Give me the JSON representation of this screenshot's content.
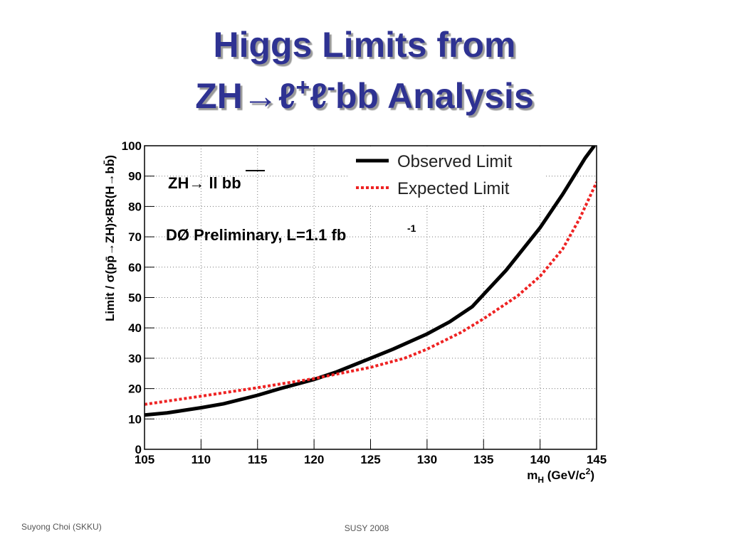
{
  "slide": {
    "title_line1": "Higgs Limits from",
    "title_line2": [
      "ZH→ℓ",
      "+",
      "ℓ",
      "-",
      "bb  Analysis"
    ],
    "footer_left": "Suyong Choi (SKKU)",
    "footer_center": "SUSY 2008"
  },
  "chart_data": {
    "type": "line",
    "y_label": "Limit / σ(pp̄→ZH)×BR(H→bb̄)",
    "x_label": [
      "m",
      "H",
      " (GeV/c",
      "2",
      ")"
    ],
    "annotations": [
      "ZH→ ll bb",
      "DØ Preliminary, L=1.1 fb",
      "-1"
    ],
    "xlim": [
      105,
      145
    ],
    "xticks": [
      105,
      110,
      115,
      120,
      125,
      130,
      135,
      140,
      145
    ],
    "ylim": [
      0,
      100
    ],
    "yticks": [
      0,
      10,
      20,
      30,
      40,
      50,
      60,
      70,
      80,
      90,
      100
    ],
    "grid": true,
    "legend": "upper right",
    "series": [
      {
        "name": "Observed Limit",
        "color": "#000000",
        "style": "solid",
        "x": [
          105,
          107,
          110,
          112,
          115,
          117,
          120,
          122,
          125,
          127,
          130,
          132,
          134,
          135,
          137,
          140,
          142,
          144,
          144.8
        ],
        "values": [
          11.3,
          12,
          13.7,
          15,
          17.8,
          20,
          23,
          25.5,
          30,
          33,
          38,
          42,
          47,
          51,
          59,
          73,
          84,
          96,
          100
        ]
      },
      {
        "name": "Expected Limit",
        "color": "#ee2222",
        "style": "dotted",
        "x": [
          105,
          110,
          115,
          120,
          125,
          128,
          130,
          133,
          135,
          138,
          140,
          142,
          143.5,
          145
        ],
        "values": [
          14.8,
          17.5,
          20.3,
          23.3,
          27,
          30,
          33,
          38.5,
          43,
          50.5,
          57,
          66,
          76,
          88
        ]
      }
    ]
  }
}
